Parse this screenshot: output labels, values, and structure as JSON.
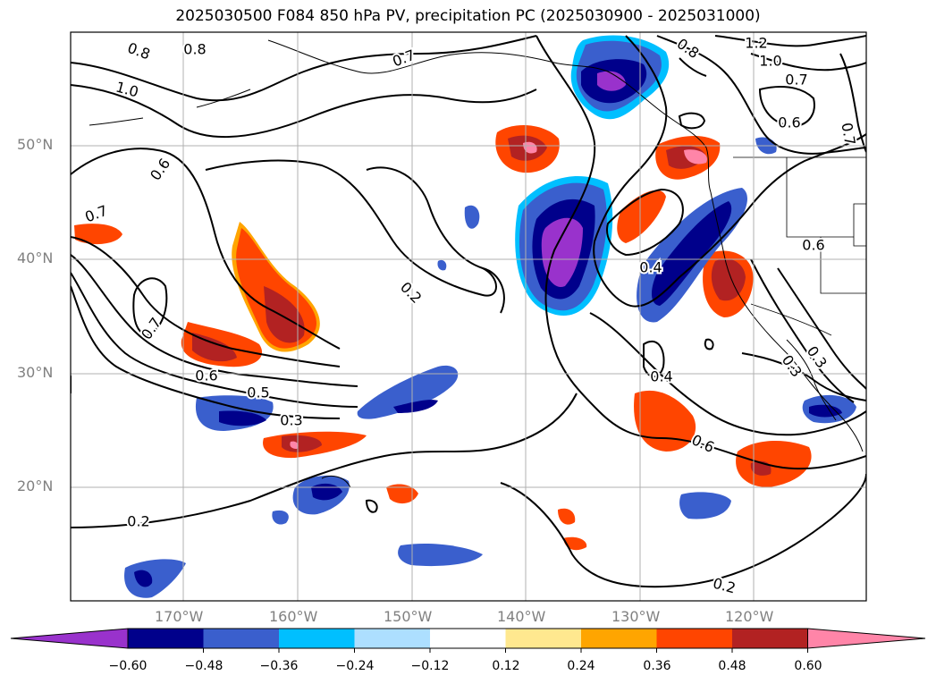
{
  "title": "2025030500 F084 850 hPa PV, precipitation PC (2025030900 - 2025031000)",
  "lat_labels": [
    "50°N",
    "40°N",
    "30°N",
    "20°N"
  ],
  "lon_labels": [
    "170°W",
    "160°W",
    "150°W",
    "140°W",
    "130°W",
    "120°W"
  ],
  "colorbar": {
    "ticks": [
      "−0.60",
      "−0.48",
      "−0.36",
      "−0.24",
      "−0.12",
      "0.12",
      "0.24",
      "0.36",
      "0.48",
      "0.60"
    ],
    "colors": [
      "#9932CC",
      "#00008B",
      "#3A5FCD",
      "#00BFFF",
      "#ADDFFF",
      "#FFFFFF",
      "#FFE88F",
      "#FFA500",
      "#FF4500",
      "#B22222",
      "#FF85A8"
    ]
  },
  "contour_labels": [
    "0.8",
    "0.8",
    "0.7",
    "1.0",
    "0.6",
    "0.7",
    "0.7",
    "0.6",
    "0.5",
    "0.3",
    "0.2",
    "0.2",
    "0.8",
    "1.2",
    "1.0",
    "0.7",
    "0.6",
    "0.7",
    "0.6",
    "0.4",
    "0.6",
    "0.3",
    "0.3",
    "0.4",
    "0.2"
  ]
}
